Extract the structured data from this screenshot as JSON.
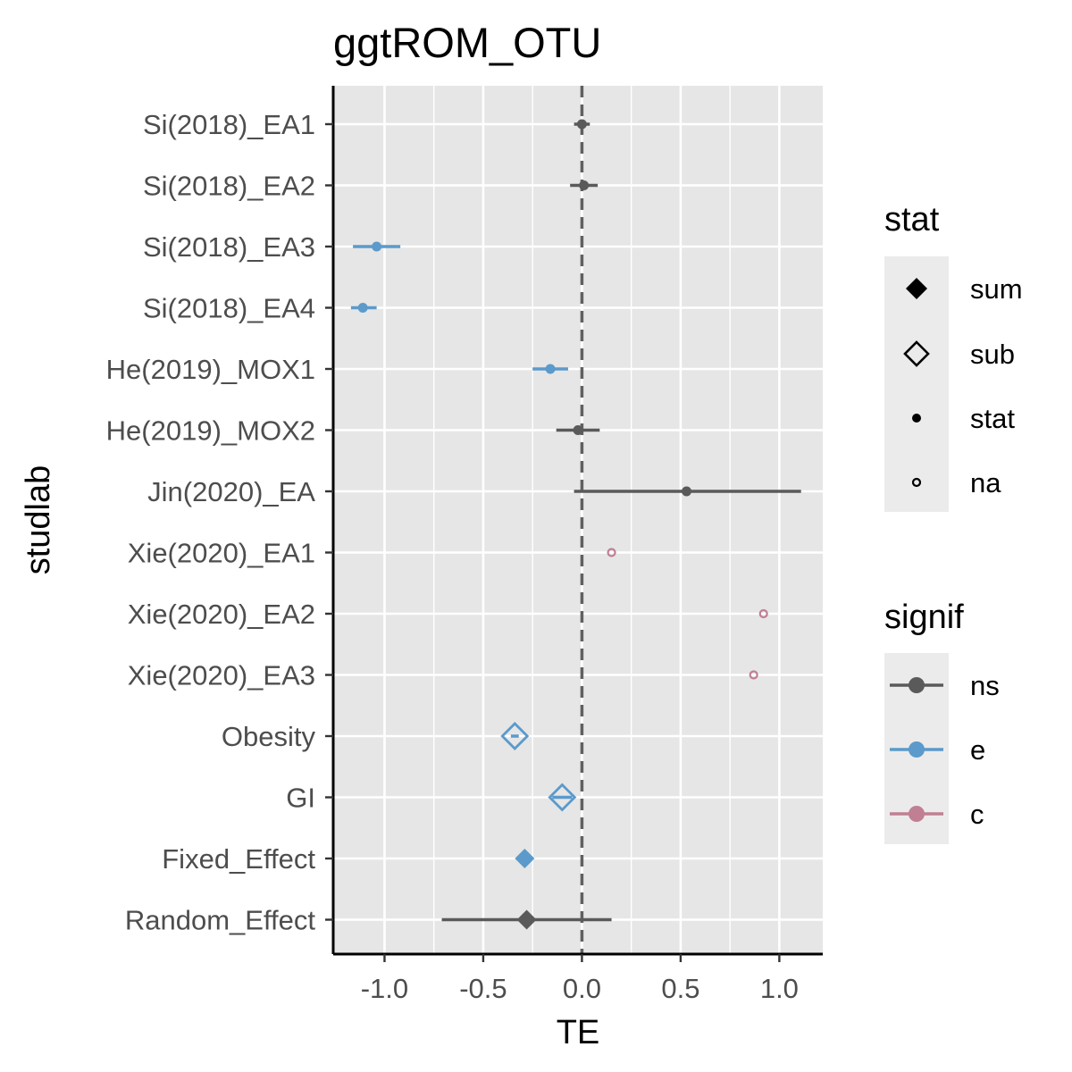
{
  "chart_data": {
    "type": "scatter",
    "title": "ggtROM_OTU",
    "xlabel": "TE",
    "ylabel": "studlab",
    "xlim": [
      -1.26,
      1.22
    ],
    "x_ticks": [
      -1.0,
      -0.5,
      0.0,
      0.5,
      1.0
    ],
    "x_tick_labels": [
      "-1.0",
      "-0.5",
      "0.0",
      "0.5",
      "1.0"
    ],
    "reference_line": 0,
    "grid": true,
    "legend_position": "right",
    "categories": [
      "Si(2018)_EA1",
      "Si(2018)_EA2",
      "Si(2018)_EA3",
      "Si(2018)_EA4",
      "He(2019)_MOX1",
      "He(2019)_MOX2",
      "Jin(2020)_EA",
      "Xie(2020)_EA1",
      "Xie(2020)_EA2",
      "Xie(2020)_EA3",
      "Obesity",
      "GI",
      "Fixed_Effect",
      "Random_Effect"
    ],
    "points": [
      {
        "studlab": "Si(2018)_EA1",
        "TE": 0.0,
        "lower": -0.04,
        "upper": 0.04,
        "stat": "stat",
        "signif": "ns"
      },
      {
        "studlab": "Si(2018)_EA2",
        "TE": 0.01,
        "lower": -0.06,
        "upper": 0.08,
        "stat": "stat",
        "signif": "ns"
      },
      {
        "studlab": "Si(2018)_EA3",
        "TE": -1.04,
        "lower": -1.16,
        "upper": -0.92,
        "stat": "stat",
        "signif": "e"
      },
      {
        "studlab": "Si(2018)_EA4",
        "TE": -1.11,
        "lower": -1.17,
        "upper": -1.04,
        "stat": "stat",
        "signif": "e"
      },
      {
        "studlab": "He(2019)_MOX1",
        "TE": -0.16,
        "lower": -0.25,
        "upper": -0.07,
        "stat": "stat",
        "signif": "e"
      },
      {
        "studlab": "He(2019)_MOX2",
        "TE": -0.02,
        "lower": -0.13,
        "upper": 0.09,
        "stat": "stat",
        "signif": "ns"
      },
      {
        "studlab": "Jin(2020)_EA",
        "TE": 0.53,
        "lower": -0.04,
        "upper": 1.11,
        "stat": "stat",
        "signif": "ns"
      },
      {
        "studlab": "Xie(2020)_EA1",
        "TE": 0.15,
        "lower": null,
        "upper": null,
        "stat": "na",
        "signif": "c"
      },
      {
        "studlab": "Xie(2020)_EA2",
        "TE": 0.92,
        "lower": null,
        "upper": null,
        "stat": "na",
        "signif": "c"
      },
      {
        "studlab": "Xie(2020)_EA3",
        "TE": 0.87,
        "lower": null,
        "upper": null,
        "stat": "na",
        "signif": "c"
      },
      {
        "studlab": "Obesity",
        "TE": -0.34,
        "lower": -0.36,
        "upper": -0.32,
        "stat": "sub",
        "signif": "e"
      },
      {
        "studlab": "GI",
        "TE": -0.1,
        "lower": -0.15,
        "upper": -0.05,
        "stat": "sub",
        "signif": "e"
      },
      {
        "studlab": "Fixed_Effect",
        "TE": -0.29,
        "lower": -0.3,
        "upper": -0.28,
        "stat": "sum",
        "signif": "e"
      },
      {
        "studlab": "Random_Effect",
        "TE": -0.28,
        "lower": -0.71,
        "upper": 0.15,
        "stat": "sum",
        "signif": "ns"
      }
    ],
    "legends": [
      {
        "title": "stat",
        "entries": [
          "sum",
          "sub",
          "stat",
          "na"
        ]
      },
      {
        "title": "signif",
        "entries": [
          "ns",
          "e",
          "c"
        ]
      }
    ],
    "colors": {
      "ns": "#5a5a5a",
      "e": "#5b9acb",
      "c": "#c07f92",
      "panel": "#e6e6e6",
      "grid": "#ffffff"
    }
  }
}
